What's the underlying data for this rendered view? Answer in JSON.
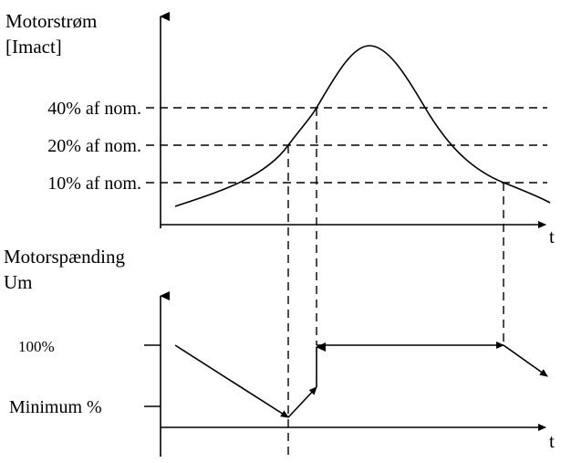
{
  "current_chart": {
    "ylabel_line1": "Motorstrøm",
    "ylabel_line2": "[Imact]",
    "xlabel": "t",
    "thresholds": [
      {
        "label": "40% af nom.",
        "percent": 40
      },
      {
        "label": "20% af nom.",
        "percent": 20
      },
      {
        "label": "10% af nom.",
        "percent": 10
      }
    ]
  },
  "voltage_chart": {
    "ylabel_line1": "Motorspænding",
    "ylabel_line2": "Um",
    "xlabel": "t",
    "levels": [
      {
        "label": "100%"
      },
      {
        "label": "Minimum %"
      }
    ]
  }
}
